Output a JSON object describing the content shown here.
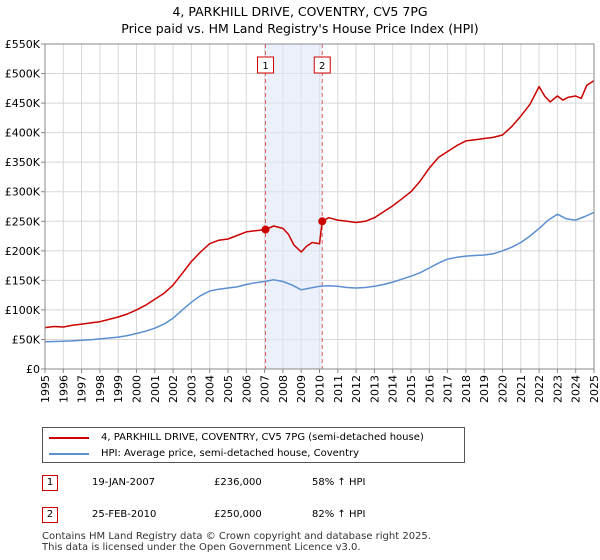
{
  "chart_data": {
    "type": "line",
    "title": "4, PARKHILL DRIVE, COVENTRY, CV5 7PG",
    "subtitle": "Price paid vs. HM Land Registry's House Price Index (HPI)",
    "xlim": [
      1995,
      2025
    ],
    "ylim": [
      0,
      550000
    ],
    "x_ticks": [
      "1995",
      "1996",
      "1997",
      "1998",
      "1999",
      "2000",
      "2001",
      "2002",
      "2003",
      "2004",
      "2005",
      "2006",
      "2007",
      "2008",
      "2009",
      "2010",
      "2011",
      "2012",
      "2013",
      "2014",
      "2015",
      "2016",
      "2017",
      "2018",
      "2019",
      "2020",
      "2021",
      "2022",
      "2023",
      "2024",
      "2025"
    ],
    "y_ticks": [
      {
        "value": 0,
        "label": "£0"
      },
      {
        "value": 50000,
        "label": "£50K"
      },
      {
        "value": 100000,
        "label": "£100K"
      },
      {
        "value": 150000,
        "label": "£150K"
      },
      {
        "value": 200000,
        "label": "£200K"
      },
      {
        "value": 250000,
        "label": "£250K"
      },
      {
        "value": 300000,
        "label": "£300K"
      },
      {
        "value": 350000,
        "label": "£350K"
      },
      {
        "value": 400000,
        "label": "£400K"
      },
      {
        "value": 450000,
        "label": "£450K"
      },
      {
        "value": 500000,
        "label": "£500K"
      },
      {
        "value": 550000,
        "label": "£550K"
      }
    ],
    "grid": true,
    "highlight_span": [
      2007.05,
      2010.15
    ],
    "series": [
      {
        "name": "4, PARKHILL DRIVE, COVENTRY, CV5 7PG (semi-detached house)",
        "color": "#cc0000",
        "x": [
          1995,
          1995.5,
          1996,
          1996.5,
          1997,
          1997.5,
          1998,
          1998.5,
          1999,
          1999.5,
          2000,
          2000.5,
          2001,
          2001.5,
          2002,
          2002.5,
          2003,
          2003.5,
          2004,
          2004.5,
          2005,
          2005.5,
          2006,
          2006.5,
          2007.05,
          2007.5,
          2008,
          2008.3,
          2008.6,
          2009,
          2009.3,
          2009.6,
          2010,
          2010.15,
          2010.5,
          2011,
          2011.5,
          2012,
          2012.5,
          2013,
          2013.5,
          2014,
          2014.5,
          2015,
          2015.5,
          2016,
          2016.5,
          2017,
          2017.5,
          2018,
          2018.5,
          2019,
          2019.5,
          2020,
          2020.5,
          2021,
          2021.5,
          2022,
          2022.3,
          2022.6,
          2023,
          2023.3,
          2023.6,
          2024,
          2024.3,
          2024.6,
          2025
        ],
        "values": [
          70000,
          72000,
          71000,
          74000,
          76000,
          78000,
          80000,
          84000,
          88000,
          93000,
          100000,
          108000,
          118000,
          128000,
          142000,
          162000,
          182000,
          198000,
          212000,
          218000,
          220000,
          226000,
          232000,
          234000,
          236000,
          242000,
          238000,
          228000,
          210000,
          198000,
          208000,
          214000,
          212000,
          250000,
          256000,
          252000,
          250000,
          248000,
          250000,
          256000,
          266000,
          276000,
          288000,
          300000,
          318000,
          340000,
          358000,
          368000,
          378000,
          386000,
          388000,
          390000,
          392000,
          396000,
          410000,
          428000,
          448000,
          478000,
          462000,
          452000,
          462000,
          455000,
          460000,
          462000,
          458000,
          480000,
          488000
        ]
      },
      {
        "name": "HPI: Average price, semi-detached house, Coventry",
        "color": "#5b8fd0",
        "x": [
          1995,
          1995.5,
          1996,
          1996.5,
          1997,
          1997.5,
          1998,
          1998.5,
          1999,
          1999.5,
          2000,
          2000.5,
          2001,
          2001.5,
          2002,
          2002.5,
          2003,
          2003.5,
          2004,
          2004.5,
          2005,
          2005.5,
          2006,
          2006.5,
          2007,
          2007.5,
          2008,
          2008.5,
          2009,
          2009.5,
          2010,
          2010.5,
          2011,
          2011.5,
          2012,
          2012.5,
          2013,
          2013.5,
          2014,
          2014.5,
          2015,
          2015.5,
          2016,
          2016.5,
          2017,
          2017.5,
          2018,
          2018.5,
          2019,
          2019.5,
          2020,
          2020.5,
          2021,
          2021.5,
          2022,
          2022.5,
          2023,
          2023.5,
          2024,
          2024.5,
          2025
        ],
        "values": [
          46000,
          46500,
          47000,
          47500,
          48500,
          49500,
          51000,
          52500,
          54000,
          56500,
          60000,
          64000,
          69000,
          76000,
          86000,
          100000,
          113000,
          124000,
          132000,
          135000,
          137000,
          139000,
          143000,
          146000,
          148000,
          151000,
          148000,
          142000,
          134000,
          137000,
          140000,
          141000,
          140000,
          138000,
          137000,
          138000,
          140000,
          143000,
          147000,
          152000,
          157000,
          163000,
          171000,
          179000,
          186000,
          189000,
          191000,
          192000,
          193000,
          195000,
          200000,
          206000,
          214000,
          225000,
          238000,
          252000,
          262000,
          254000,
          252000,
          258000,
          265000
        ]
      }
    ],
    "annotations": [
      {
        "label": "1",
        "x": 2007.05,
        "y": 236000
      },
      {
        "label": "2",
        "x": 2010.15,
        "y": 250000
      }
    ]
  },
  "legend": {
    "property_label": "4, PARKHILL DRIVE, COVENTRY, CV5 7PG (semi-detached house)",
    "hpi_label": "HPI: Average price, semi-detached house, Coventry",
    "property_color": "#cc0000",
    "hpi_color": "#5b8fd0"
  },
  "sales": [
    {
      "num": "1",
      "date": "19-JAN-2007",
      "price": "£236,000",
      "hpi": "58% ↑ HPI"
    },
    {
      "num": "2",
      "date": "25-FEB-2010",
      "price": "£250,000",
      "hpi": "82% ↑ HPI"
    }
  ],
  "footer": {
    "line1": "Contains HM Land Registry data © Crown copyright and database right 2025.",
    "line2": "This data is licensed under the Open Government Licence v3.0."
  }
}
